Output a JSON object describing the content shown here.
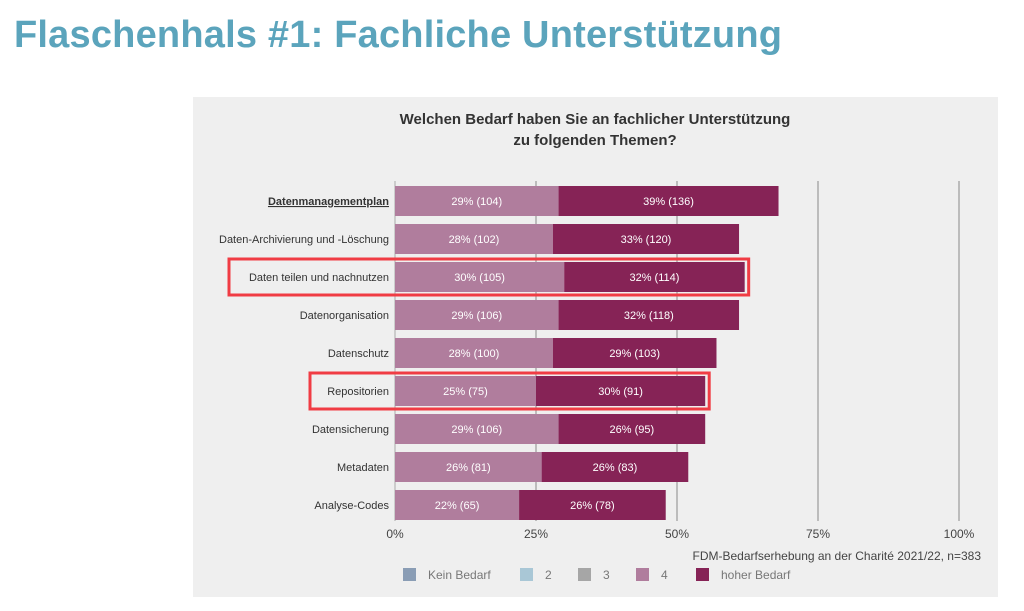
{
  "slide": {
    "title": "Flaschenhals #1: Fachliche Unterstützung"
  },
  "chart_data": {
    "type": "bar",
    "orientation": "horizontal",
    "stacked": true,
    "title_lines": [
      "Welchen Bedarf haben Sie an fachlicher Unterstützung",
      "zu folgenden Themen?"
    ],
    "categories": [
      "Datenmanagementplan",
      "Daten-Archivierung und -Löschung",
      "Daten teilen und nachnutzen",
      "Datenorganisation",
      "Datenschutz",
      "Repositorien",
      "Datensicherung",
      "Metadaten",
      "Analyse-Codes"
    ],
    "highlighted_categories": [
      "Daten teilen und nachnutzen",
      "Repositorien"
    ],
    "underlined_category": "Datenmanagementplan",
    "series": [
      {
        "name": "4",
        "color": "#b07d9d",
        "values": [
          29,
          28,
          30,
          29,
          28,
          25,
          29,
          26,
          22
        ],
        "labels": [
          "29% (104)",
          "28% (102)",
          "30% (105)",
          "29% (106)",
          "28% (100)",
          "25% (75)",
          "29% (106)",
          "26% (81)",
          "22% (65)"
        ]
      },
      {
        "name": "hoher Bedarf",
        "color": "#862356",
        "values": [
          39,
          33,
          32,
          32,
          29,
          30,
          26,
          26,
          26
        ],
        "labels": [
          "39% (136)",
          "33% (120)",
          "32% (114)",
          "32% (118)",
          "29% (103)",
          "30% (91)",
          "26% (95)",
          "26% (83)",
          "26% (78)"
        ]
      }
    ],
    "xlim": [
      0,
      100
    ],
    "xticks": [
      0,
      25,
      50,
      75,
      100
    ],
    "xtick_labels": [
      "0%",
      "25%",
      "50%",
      "75%",
      "100%"
    ],
    "grid": true,
    "source": "FDM-Bedarfserhebung an der Charité 2021/22, n=383",
    "legend": {
      "placement": "bottom",
      "items": [
        {
          "label": "Kein Bedarf",
          "color": "#8a9db5"
        },
        {
          "label": "2",
          "color": "#a9c7d6"
        },
        {
          "label": "3",
          "color": "#a6a6a6"
        },
        {
          "label": "4",
          "color": "#b07d9d"
        },
        {
          "label": "hoher Bedarf",
          "color": "#862356"
        }
      ]
    },
    "highlight_color": "#f03c44",
    "label_text_color": "#ffffff"
  }
}
